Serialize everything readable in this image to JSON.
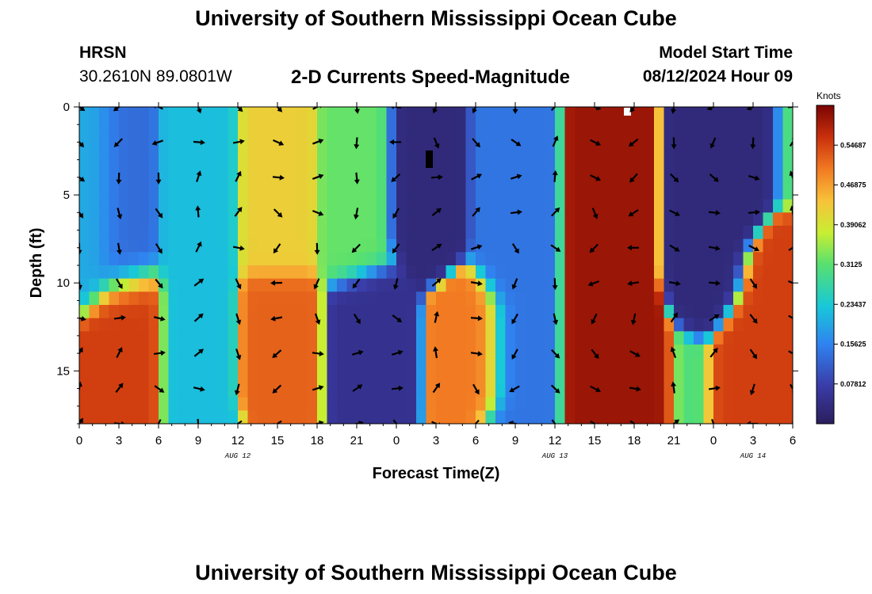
{
  "header": {
    "title": "University of Southern Mississippi Ocean Cube",
    "station": "HRSN",
    "coords": "30.2610N  89.0801W",
    "subtitle": "2-D Currents Speed-Magnitude",
    "model_start_label": "Model Start Time",
    "model_start_value": "08/12/2024 Hour 09"
  },
  "footer": {
    "title": "University of Southern Mississippi Ocean Cube"
  },
  "chart_data": {
    "type": "heatmap",
    "title": "2-D Currents Speed-Magnitude",
    "xlabel": "Forecast Time(Z)",
    "ylabel": "Depth (ft)",
    "x_ticks": [
      "0",
      "3",
      "6",
      "9",
      "12",
      "15",
      "18",
      "21",
      "0",
      "3",
      "6",
      "9",
      "12",
      "15",
      "18",
      "21",
      "0",
      "3",
      "6"
    ],
    "x_range_hours": [
      0,
      54
    ],
    "date_labels": [
      {
        "label": "AUG 12",
        "hour": 12
      },
      {
        "label": "AUG 13",
        "hour": 36
      },
      {
        "label": "AUG 14",
        "hour": 51
      }
    ],
    "y_ticks": [
      "0",
      "5",
      "10",
      "15"
    ],
    "y_tick_values": [
      0,
      5,
      10,
      15
    ],
    "ylim": [
      0,
      18
    ],
    "colorbar": {
      "unit": "Knots",
      "min": 0,
      "max": 0.625,
      "tick_labels": [
        "0.54687",
        "0.46875",
        "0.39062",
        "0.3125",
        "0.23437",
        "0.15625",
        "0.07812"
      ],
      "tick_values": [
        0.54687,
        0.46875,
        0.39062,
        0.3125,
        0.23437,
        0.15625,
        0.07812
      ]
    },
    "arrow_hours": [
      0,
      3,
      6,
      9,
      12,
      15,
      18,
      21,
      24,
      27,
      30,
      33,
      36,
      39,
      42,
      45,
      48,
      51,
      54
    ],
    "arrow_depths": [
      0,
      2,
      4,
      6,
      8,
      10,
      12,
      14,
      16,
      18
    ],
    "speed_features": [
      {
        "hour": 1,
        "depth_from": 0,
        "depth_to": 9,
        "speed": 0.2
      },
      {
        "hour": 3,
        "depth_from": 0,
        "depth_to": 9,
        "speed": 0.13
      },
      {
        "hour": 3.5,
        "depth_from": 11,
        "depth_to": 18,
        "speed": 0.55
      },
      {
        "hour": 9,
        "depth_from": 0,
        "depth_to": 18,
        "speed": 0.22
      },
      {
        "hour": 15,
        "depth_from": 0,
        "depth_to": 8,
        "speed": 0.42
      },
      {
        "hour": 15,
        "depth_from": 11,
        "depth_to": 16,
        "speed": 0.52
      },
      {
        "hour": 21,
        "depth_from": 0,
        "depth_to": 8,
        "speed": 0.32
      },
      {
        "hour": 22,
        "depth_from": 11,
        "depth_to": 16,
        "speed": 0.05
      },
      {
        "hour": 26,
        "depth_from": 0,
        "depth_to": 7,
        "speed": 0.03
      },
      {
        "hour": 30,
        "depth_from": 12,
        "depth_to": 16,
        "speed": 0.5
      },
      {
        "hour": 33,
        "depth_from": 0,
        "depth_to": 18,
        "speed": 0.14
      },
      {
        "hour": 40,
        "depth_from": 0,
        "depth_to": 18,
        "speed": 0.6
      },
      {
        "hour": 48,
        "depth_from": 0,
        "depth_to": 9,
        "speed": 0.03
      },
      {
        "hour": 52.5,
        "depth_from": 10,
        "depth_to": 18,
        "speed": 0.55
      }
    ]
  }
}
